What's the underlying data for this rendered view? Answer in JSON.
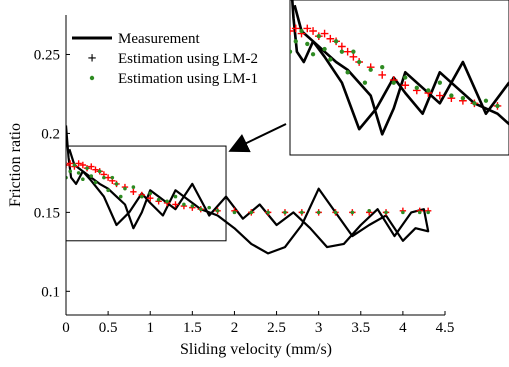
{
  "chart_data": {
    "type": "line",
    "xlabel": "Sliding velocity (mm/s)",
    "ylabel": "Friction ratio",
    "xlim": [
      0,
      4.5
    ],
    "ylim": [
      0.085,
      0.275
    ],
    "x_ticks": [
      0,
      0.5,
      1,
      1.5,
      2,
      2.5,
      3,
      3.5,
      4,
      4.5
    ],
    "x_tick_labels": [
      "0",
      "0.5",
      "1",
      "1.5",
      "2",
      "2.5",
      "3",
      "3.5",
      "4",
      "4.5"
    ],
    "y_ticks": [
      0.1,
      0.15,
      0.2,
      0.25
    ],
    "y_tick_labels": [
      "0.1",
      "0.15",
      "0.2",
      "0.25"
    ],
    "legend_position": "top-left",
    "series": [
      {
        "name": "Measurement",
        "style": "line",
        "color": "#000000",
        "x": [
          0.0,
          0.03,
          0.06,
          0.12,
          0.2,
          0.3,
          0.45,
          0.6,
          0.75,
          0.9,
          1.0,
          1.15,
          1.3,
          1.45,
          1.6,
          1.8,
          2.0,
          2.2,
          2.4,
          2.6,
          2.8,
          3.0,
          3.2,
          3.4,
          3.6,
          3.8,
          4.0,
          4.15,
          4.3,
          4.25,
          4.1,
          3.9,
          3.7,
          3.5,
          3.3,
          3.1,
          2.9,
          2.7,
          2.5,
          2.3,
          2.1,
          1.9,
          1.7,
          1.5,
          1.3,
          1.15,
          1.0,
          0.9,
          0.8,
          0.7,
          0.6,
          0.5,
          0.4,
          0.3,
          0.2,
          0.1,
          0.04
        ],
        "y": [
          0.205,
          0.185,
          0.172,
          0.168,
          0.176,
          0.17,
          0.16,
          0.142,
          0.15,
          0.162,
          0.156,
          0.148,
          0.164,
          0.158,
          0.152,
          0.148,
          0.14,
          0.13,
          0.124,
          0.128,
          0.142,
          0.165,
          0.15,
          0.135,
          0.142,
          0.148,
          0.132,
          0.14,
          0.138,
          0.152,
          0.15,
          0.135,
          0.152,
          0.142,
          0.13,
          0.128,
          0.14,
          0.15,
          0.142,
          0.155,
          0.146,
          0.16,
          0.148,
          0.168,
          0.152,
          0.158,
          0.164,
          0.15,
          0.14,
          0.155,
          0.16,
          0.165,
          0.168,
          0.172,
          0.176,
          0.18,
          0.19
        ]
      },
      {
        "name": "Estimation using LM-2",
        "style": "plus-markers",
        "color": "#ff0000",
        "x": [
          0.0,
          0.05,
          0.1,
          0.15,
          0.2,
          0.25,
          0.3,
          0.35,
          0.4,
          0.45,
          0.5,
          0.55,
          0.6,
          0.7,
          0.8,
          0.9,
          1.0,
          1.1,
          1.2,
          1.3,
          1.4,
          1.5,
          1.6,
          1.8,
          2.0,
          2.2,
          2.4,
          2.6,
          2.8,
          3.0,
          3.2,
          3.4,
          3.6,
          3.8,
          4.0,
          4.2,
          4.3
        ],
        "y": [
          0.18,
          0.181,
          0.179,
          0.181,
          0.18,
          0.178,
          0.179,
          0.177,
          0.176,
          0.174,
          0.172,
          0.17,
          0.168,
          0.166,
          0.163,
          0.161,
          0.159,
          0.157,
          0.156,
          0.155,
          0.154,
          0.153,
          0.152,
          0.151,
          0.151,
          0.15,
          0.15,
          0.15,
          0.15,
          0.15,
          0.15,
          0.15,
          0.15,
          0.15,
          0.151,
          0.151,
          0.151
        ]
      },
      {
        "name": "Estimation using LM-1",
        "style": "dot-markers",
        "color": "#2e8b22",
        "x": [
          0.0,
          0.05,
          0.1,
          0.15,
          0.2,
          0.25,
          0.3,
          0.35,
          0.4,
          0.45,
          0.5,
          0.55,
          0.6,
          0.65,
          0.7,
          0.8,
          0.9,
          1.0,
          1.1,
          1.2,
          1.3,
          1.4,
          1.5,
          1.6,
          1.7,
          1.8,
          2.0,
          2.2,
          2.4,
          2.6,
          2.8,
          3.0,
          3.2,
          3.4,
          3.6,
          3.8,
          4.0,
          4.2,
          4.3
        ],
        "y": [
          0.172,
          0.176,
          0.18,
          0.175,
          0.171,
          0.178,
          0.173,
          0.169,
          0.176,
          0.172,
          0.164,
          0.172,
          0.168,
          0.16,
          0.165,
          0.166,
          0.16,
          0.162,
          0.158,
          0.157,
          0.16,
          0.155,
          0.154,
          0.152,
          0.153,
          0.151,
          0.15,
          0.15,
          0.15,
          0.15,
          0.15,
          0.15,
          0.15,
          0.15,
          0.151,
          0.15,
          0.15,
          0.15,
          0.15
        ]
      }
    ],
    "zoom_region": {
      "x_range": [
        0,
        1.9
      ],
      "y_range": [
        0.132,
        0.192
      ]
    },
    "inset": {
      "description_series": [
        "Measurement",
        "Estimation using LM-2",
        "Estimation using LM-1"
      ]
    }
  }
}
